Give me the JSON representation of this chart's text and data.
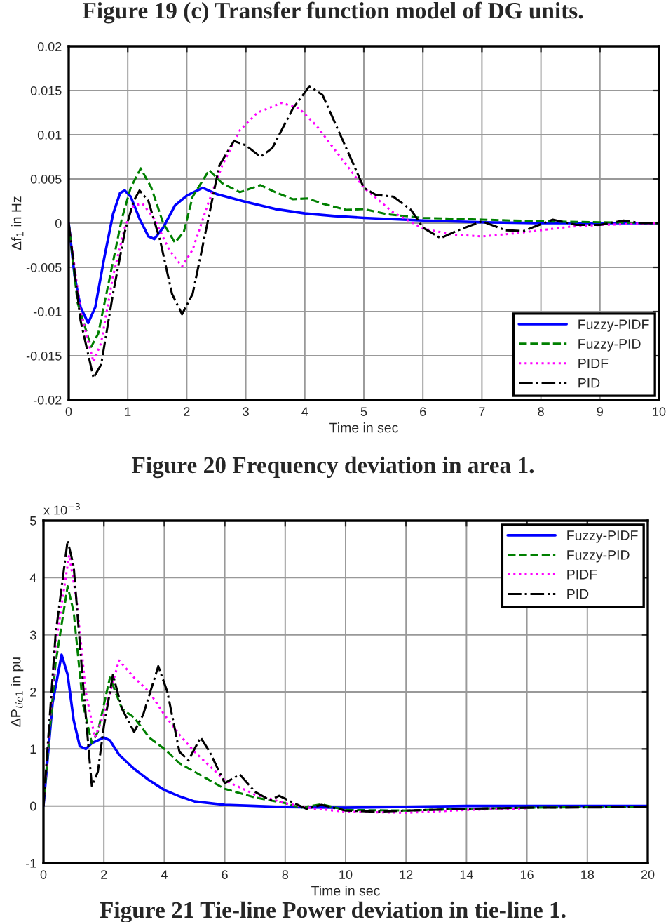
{
  "chart_data": [
    {
      "type": "line",
      "xlabel": "Time in sec",
      "ylabel": "Δf$_{1}$ in Hz",
      "annotations": [
        "Figure 19 (c) Transfer function model of DG units.",
        "Figure 20 Frequency deviation in area 1."
      ],
      "xlim": [
        0,
        10
      ],
      "xticks": [
        0,
        1,
        2,
        3,
        4,
        5,
        6,
        7,
        8,
        9,
        10
      ],
      "ylim": [
        -0.02,
        0.02
      ],
      "yticks": [
        -0.02,
        -0.015,
        -0.01,
        -0.005,
        0,
        0.005,
        0.01,
        0.015,
        0.02
      ],
      "grid": true,
      "legend": "bottom right",
      "marker": "none",
      "series": [
        {
          "name": "Fuzzy-PIDF",
          "color": "#0000ff",
          "line_style": "solid",
          "x": [
            0,
            0.1,
            0.2,
            0.33,
            0.45,
            0.6,
            0.75,
            0.87,
            0.95,
            1.05,
            1.2,
            1.35,
            1.45,
            1.6,
            1.8,
            2.0,
            2.27,
            2.5,
            3,
            3.5,
            4,
            4.5,
            5,
            6,
            7,
            8,
            9,
            10
          ],
          "values": [
            0,
            -0.006,
            -0.0095,
            -0.0113,
            -0.0095,
            -0.004,
            0.001,
            0.0034,
            0.0037,
            0.003,
            0.0005,
            -0.0015,
            -0.0018,
            -0.0005,
            0.002,
            0.0031,
            0.004,
            0.0033,
            0.0024,
            0.0016,
            0.0011,
            0.0008,
            0.0006,
            0.0003,
            0.0001,
            0,
            0,
            0
          ]
        },
        {
          "name": "Fuzzy-PID",
          "color": "#008000",
          "line_style": "dashed",
          "x": [
            0,
            0.15,
            0.38,
            0.5,
            0.7,
            0.9,
            1.05,
            1.22,
            1.4,
            1.6,
            1.8,
            1.95,
            2.1,
            2.38,
            2.6,
            2.9,
            3.25,
            3.5,
            3.8,
            4.05,
            4.3,
            4.7,
            5,
            5.4,
            6,
            7,
            8,
            9,
            10
          ],
          "values": [
            0,
            -0.009,
            -0.014,
            -0.0125,
            -0.006,
            0.0005,
            0.004,
            0.0062,
            0.004,
            0.0,
            -0.0022,
            -0.001,
            0.003,
            0.006,
            0.0045,
            0.0035,
            0.0043,
            0.0035,
            0.0027,
            0.0028,
            0.0022,
            0.0015,
            0.0016,
            0.001,
            0.0006,
            0.0004,
            0.0002,
            0.0001,
            0
          ]
        },
        {
          "name": "PIDF",
          "color": "#ff00ff",
          "line_style": "dotted",
          "x": [
            0,
            0.2,
            0.42,
            0.55,
            0.75,
            0.95,
            1.1,
            1.25,
            1.45,
            1.7,
            1.92,
            2.1,
            2.35,
            2.6,
            2.9,
            3.2,
            3.6,
            3.9,
            4.2,
            4.6,
            5,
            5.5,
            6,
            6.5,
            7,
            7.5,
            8,
            8.5,
            9,
            10
          ],
          "values": [
            0,
            -0.01,
            -0.0157,
            -0.0135,
            -0.006,
            -0.0005,
            0.002,
            0.0022,
            0.0005,
            -0.003,
            -0.0049,
            -0.003,
            0.002,
            0.0065,
            0.0105,
            0.0125,
            0.0136,
            0.013,
            0.011,
            0.0075,
            0.004,
            0.0012,
            -0.0006,
            -0.0013,
            -0.0015,
            -0.0012,
            -0.0008,
            -0.0004,
            -0.0002,
            0
          ]
        },
        {
          "name": "PID",
          "color": "#000000",
          "line_style": "dashdot",
          "x": [
            0,
            0.2,
            0.42,
            0.55,
            0.75,
            0.95,
            1.1,
            1.2,
            1.35,
            1.55,
            1.75,
            1.92,
            2.1,
            2.35,
            2.55,
            2.8,
            3.0,
            3.25,
            3.45,
            3.8,
            4.08,
            4.3,
            4.6,
            5,
            5.2,
            5.5,
            5.8,
            6,
            6.3,
            6.6,
            7,
            7.4,
            7.7,
            8.2,
            8.6,
            9,
            9.4,
            9.7,
            10
          ],
          "values": [
            0,
            -0.011,
            -0.0175,
            -0.016,
            -0.008,
            -0.001,
            0.0025,
            0.0037,
            0.0025,
            -0.002,
            -0.008,
            -0.0103,
            -0.008,
            0.0,
            0.0065,
            0.0093,
            0.0088,
            0.0075,
            0.0085,
            0.013,
            0.0155,
            0.0145,
            0.01,
            0.004,
            0.0032,
            0.003,
            0.0015,
            -0.0005,
            -0.0017,
            -0.0008,
            0.0002,
            -0.0008,
            -0.0009,
            0.0004,
            -0.0002,
            -0.0002,
            0.0003,
            0,
            0
          ]
        }
      ]
    },
    {
      "type": "line",
      "xlabel": "Time in sec",
      "ylabel": "ΔP$_{tie1}$ in pu",
      "annotations": [
        "x 10$^{−3}$",
        "Figure 21 Tie-line Power deviation in tie-line 1."
      ],
      "xlim": [
        0,
        20
      ],
      "xticks": [
        0,
        2,
        4,
        6,
        8,
        10,
        12,
        14,
        16,
        18,
        20
      ],
      "ylim": [
        -1,
        5
      ],
      "yticks": [
        -1,
        0,
        1,
        2,
        3,
        4,
        5
      ],
      "grid": true,
      "legend": "top right",
      "marker": "none",
      "series": [
        {
          "name": "Fuzzy-PIDF",
          "color": "#0000ff",
          "line_style": "solid",
          "x": [
            0,
            0.3,
            0.6,
            0.8,
            1.0,
            1.2,
            1.4,
            1.6,
            2.0,
            2.2,
            2.5,
            3,
            3.5,
            4,
            4.5,
            5,
            6,
            7,
            8,
            10,
            14,
            20
          ],
          "values": [
            0,
            1.8,
            2.65,
            2.3,
            1.5,
            1.05,
            1.0,
            1.1,
            1.2,
            1.15,
            0.9,
            0.65,
            0.45,
            0.28,
            0.17,
            0.08,
            0.02,
            0,
            -0.02,
            -0.03,
            0,
            0
          ]
        },
        {
          "name": "Fuzzy-PID",
          "color": "#008000",
          "line_style": "dashed",
          "x": [
            0,
            0.4,
            0.8,
            1.0,
            1.3,
            1.6,
            1.8,
            2.2,
            2.6,
            3.0,
            3.5,
            4,
            4.5,
            5,
            5.5,
            6,
            7,
            8,
            8.5,
            9.2,
            10,
            12,
            14,
            16,
            20
          ],
          "values": [
            0,
            2.5,
            3.85,
            3.4,
            1.8,
            1.1,
            1.3,
            2.25,
            1.7,
            1.55,
            1.2,
            1.0,
            0.75,
            0.6,
            0.45,
            0.3,
            0.15,
            0.05,
            -0.03,
            0.03,
            -0.07,
            -0.08,
            -0.05,
            -0.03,
            -0.01
          ]
        },
        {
          "name": "PIDF",
          "color": "#ff00ff",
          "line_style": "dotted",
          "x": [
            0,
            0.4,
            0.85,
            1.1,
            1.4,
            1.7,
            2.0,
            2.5,
            3,
            3.5,
            4,
            4.5,
            5,
            5.5,
            6,
            7,
            8,
            9,
            10,
            12,
            14,
            16
          ],
          "values": [
            0,
            2.8,
            4.4,
            3.6,
            2,
            1.2,
            1.6,
            2.55,
            2.25,
            2.0,
            1.6,
            1.25,
            0.95,
            0.7,
            0.45,
            0.2,
            0.05,
            -0.05,
            -0.1,
            -0.12,
            -0.07,
            -0.04
          ]
        },
        {
          "name": "PID",
          "color": "#000000",
          "line_style": "dashdot",
          "x": [
            0,
            0.4,
            0.8,
            1.0,
            1.3,
            1.6,
            1.8,
            2.0,
            2.3,
            2.6,
            3.0,
            3.3,
            3.8,
            4.1,
            4.5,
            4.8,
            5.2,
            5.5,
            6,
            6.5,
            7,
            7.5,
            7.8,
            8.3,
            8.7,
            9.2,
            10,
            11,
            12,
            14,
            16,
            20
          ],
          "values": [
            0,
            3.0,
            4.65,
            4.2,
            2.2,
            0.35,
            0.6,
            1.4,
            2.3,
            1.7,
            1.3,
            1.6,
            2.45,
            2.0,
            0.95,
            0.8,
            1.2,
            0.95,
            0.4,
            0.55,
            0.25,
            0.1,
            0.18,
            0.05,
            -0.05,
            0.02,
            -0.08,
            -0.1,
            -0.08,
            -0.05,
            -0.03,
            -0.02
          ]
        }
      ]
    }
  ]
}
